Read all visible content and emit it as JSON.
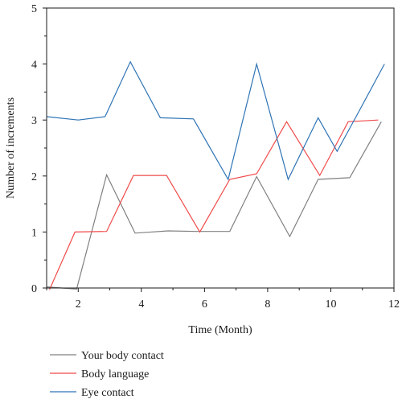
{
  "chart_data": {
    "type": "line",
    "xlabel": "Time (Month)",
    "ylabel": "Number of increments",
    "xlim": [
      1,
      12
    ],
    "ylim": [
      0,
      5
    ],
    "xticks": [
      2,
      4,
      6,
      8,
      10,
      12
    ],
    "yticks": [
      0,
      1,
      2,
      3,
      4,
      5
    ],
    "grid": false,
    "legend_position": "bottom",
    "series": [
      {
        "name": "Your body contact",
        "color": "#808080",
        "points": [
          [
            1,
            0.02
          ],
          [
            1.95,
            -0.02
          ],
          [
            2.9,
            2.02
          ],
          [
            3.8,
            0.98
          ],
          [
            4.85,
            1.02
          ],
          [
            5.75,
            1.01
          ],
          [
            6.8,
            1.01
          ],
          [
            7.65,
            1.99
          ],
          [
            8.7,
            0.92
          ],
          [
            9.6,
            1.94
          ],
          [
            10.6,
            1.97
          ],
          [
            11.6,
            2.97
          ]
        ]
      },
      {
        "name": "Body language",
        "color": "#f04a4a",
        "points": [
          [
            1.05,
            -0.08
          ],
          [
            1.9,
            1.0
          ],
          [
            2.9,
            1.01
          ],
          [
            3.75,
            2.01
          ],
          [
            4.8,
            2.01
          ],
          [
            5.85,
            1.0
          ],
          [
            6.8,
            1.94
          ],
          [
            7.65,
            2.04
          ],
          [
            8.6,
            2.97
          ],
          [
            9.65,
            2.01
          ],
          [
            10.55,
            2.97
          ],
          [
            11.5,
            3.0
          ]
        ]
      },
      {
        "name": "Eye contact",
        "color": "#2f74b5",
        "points": [
          [
            1,
            3.06
          ],
          [
            2.0,
            3.0
          ],
          [
            2.85,
            3.06
          ],
          [
            3.65,
            4.04
          ],
          [
            4.6,
            3.04
          ],
          [
            5.65,
            3.02
          ],
          [
            6.75,
            1.94
          ],
          [
            7.65,
            4.0
          ],
          [
            8.65,
            1.94
          ],
          [
            9.6,
            3.04
          ],
          [
            10.2,
            2.44
          ],
          [
            10.8,
            3.06
          ],
          [
            11.7,
            4.0
          ]
        ]
      }
    ]
  }
}
